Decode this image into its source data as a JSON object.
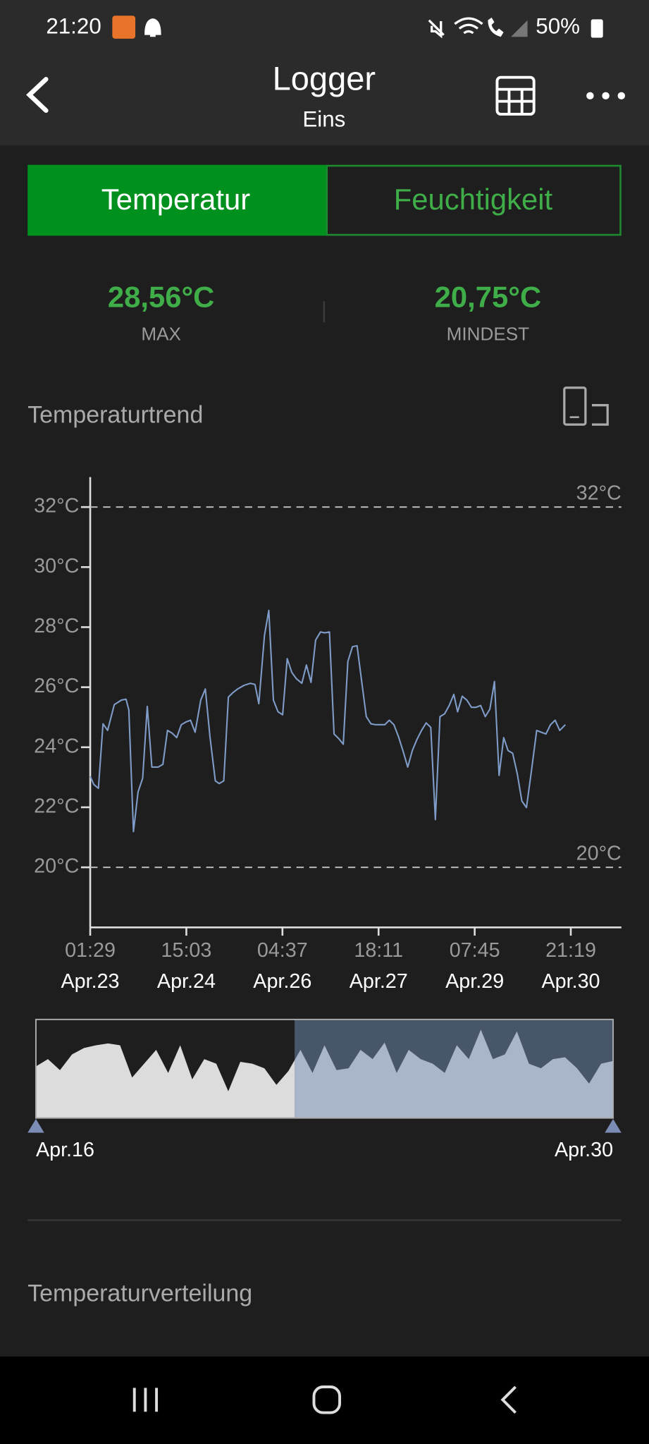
{
  "status_bar": {
    "time": "21:20",
    "battery": "50%"
  },
  "header": {
    "title": "Logger",
    "subtitle": "Eins"
  },
  "tabs": [
    "Temperatur",
    "Feuchtigkeit"
  ],
  "stats": [
    {
      "value": "28,56°C",
      "label": "MAX"
    },
    {
      "value": "20,75°C",
      "label": "MINDEST"
    }
  ],
  "trend_title": "Temperaturtrend",
  "distribution_title": "Temperaturverteilung",
  "chart_data": [
    {
      "type": "line",
      "color": "#7f9cc8",
      "x": [
        0,
        1.4,
        3.2,
        5.0,
        6.8,
        9.4,
        12.2,
        14.0,
        15.1,
        16.9,
        18.7,
        20.5,
        22.3,
        24.1,
        26.6,
        28.4,
        30.2,
        32.0,
        33.8,
        35.6,
        37.4,
        39.2,
        41.0,
        43.2,
        45.0,
        46.8,
        48.9,
        50.4,
        52.2,
        54.0,
        55.8,
        57.6,
        60.1,
        62.6,
        64.4,
        65.9,
        68.1,
        69.8,
        71.6,
        73.4,
        75.2,
        77.0,
        78.8,
        80.6,
        82.7,
        84.5,
        86.3,
        88.1,
        90.0,
        91.7,
        93.5,
        95.3,
        97.1,
        98.9,
        100.7,
        102.5,
        104.3,
        106.1,
        107.9,
        109.7,
        111.5,
        113.3,
        115.1,
        116.9,
        118.7,
        120.5,
        122.3,
        124.1,
        125.9,
        127.7,
        129.5,
        131.3,
        133.1,
        134.9,
        136.7,
        138.5,
        140.3,
        142.1,
        143.6,
        145.4,
        147.2,
        149.0,
        150.8,
        152.6,
        154.4,
        156.2,
        158.0,
        159.8,
        161.6,
        163.3,
        165.1,
        166.9,
        168.7,
        170.5,
        172.3,
        174.5,
        176.3,
        178.1,
        179.9,
        181.7,
        183.5,
        185.7
      ],
      "values": [
        23.03,
        22.76,
        22.63,
        24.78,
        24.56,
        25.42,
        25.57,
        25.6,
        25.24,
        21.19,
        22.51,
        22.97,
        25.36,
        23.34,
        23.34,
        23.43,
        24.56,
        24.47,
        24.32,
        24.75,
        24.84,
        24.9,
        24.5,
        25.57,
        25.94,
        24.35,
        22.88,
        22.79,
        22.88,
        25.67,
        25.82,
        25.94,
        26.06,
        26.13,
        26.09,
        25.45,
        27.72,
        28.56,
        25.57,
        25.18,
        25.08,
        26.95,
        26.49,
        26.28,
        26.13,
        26.74,
        26.16,
        27.57,
        27.84,
        27.81,
        27.84,
        24.44,
        24.29,
        24.1,
        26.86,
        27.35,
        27.38,
        26.19,
        25.02,
        24.78,
        24.75,
        24.75,
        24.75,
        24.9,
        24.75,
        24.35,
        23.86,
        23.34,
        23.89,
        24.26,
        24.56,
        24.81,
        24.66,
        21.59,
        25.02,
        25.11,
        25.39,
        25.76,
        25.18,
        25.7,
        25.57,
        25.33,
        25.33,
        25.39,
        25.02,
        25.27,
        26.19,
        23.06,
        24.32,
        23.89,
        23.8,
        23.12,
        22.21,
        21.99,
        23.12,
        24.56,
        24.5,
        24.44,
        24.75,
        24.9,
        24.56,
        24.75
      ],
      "xlim": [
        0,
        207.6
      ],
      "xticks": [
        {
          "value": 0,
          "label": "01:29"
        },
        {
          "value": 37.57,
          "label": "15:03"
        },
        {
          "value": 75.13,
          "label": "04:37"
        },
        {
          "value": 112.7,
          "label": "18:11"
        },
        {
          "value": 150.27,
          "label": "07:45"
        },
        {
          "value": 187.83,
          "label": "21:19"
        }
      ],
      "xtick_dates": [
        "Apr.23",
        "Apr.24",
        "Apr.26",
        "Apr.27",
        "Apr.29",
        "Apr.30"
      ],
      "ylim": [
        18,
        33
      ],
      "yticks": [
        {
          "value": 20,
          "label": "20°C"
        },
        {
          "value": 22,
          "label": "22°C"
        },
        {
          "value": 24,
          "label": "24°C"
        },
        {
          "value": 26,
          "label": "26°C"
        },
        {
          "value": 28,
          "label": "28°C"
        },
        {
          "value": 30,
          "label": "30°C"
        },
        {
          "value": 32,
          "label": "32°C"
        }
      ],
      "thresholds": [
        {
          "value": 32,
          "label": "32°C"
        },
        {
          "value": 20,
          "label": "20°C"
        }
      ]
    },
    {
      "type": "area",
      "color": "#dcdcdc",
      "selected_color": "#a9b6c9",
      "values": [
        24.28,
        25.17,
        23.83,
        25.74,
        26.52,
        26.86,
        27.08,
        26.86,
        22.93,
        24.61,
        26.3,
        23.49,
        26.86,
        22.71,
        25.17,
        24.61,
        21.25,
        24.84,
        24.61,
        24.05,
        22.04,
        23.72,
        26.3,
        23.49,
        26.86,
        23.83,
        24.05,
        26.3,
        25.17,
        27.19,
        23.49,
        26.3,
        25.17,
        24.61,
        23.49,
        26.86,
        25.17,
        28.76,
        25.17,
        25.74,
        28.54,
        24.61,
        24.05,
        25.17,
        25.4,
        24.05,
        22.19,
        24.61,
        24.95
      ],
      "ylim": [
        18,
        30
      ],
      "range_labels": [
        "Apr.16",
        "Apr.30"
      ]
    }
  ]
}
